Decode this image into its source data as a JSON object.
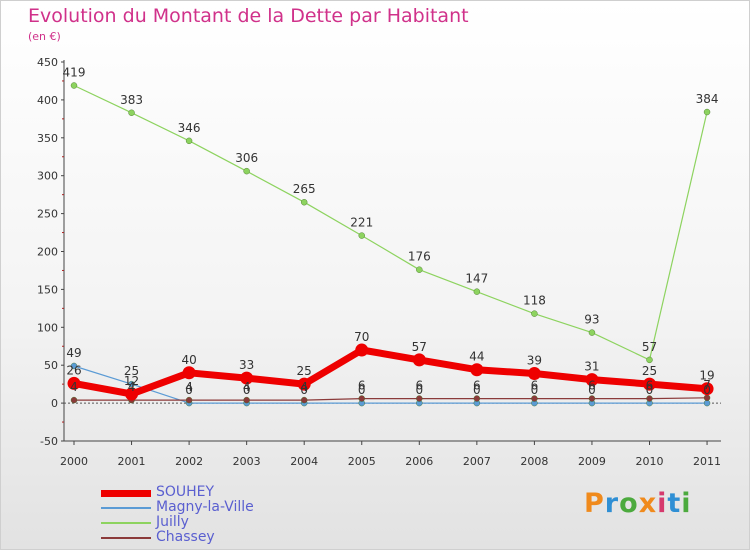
{
  "title": "Evolution du Montant de la Dette par Habitant",
  "unit": "(en €)",
  "brand": {
    "letters": [
      "P",
      "r",
      "o",
      "x",
      "i",
      "t",
      "i"
    ],
    "colors": [
      "#f08a1c",
      "#2f8fd4",
      "#4caa3e",
      "#f08a1c",
      "#d63a6e",
      "#2f8fd4",
      "#4caa3e"
    ]
  },
  "chart_data": {
    "type": "line",
    "title": "Evolution du Montant de la Dette par Habitant",
    "ylabel": "(en €)",
    "x": [
      "2000",
      "2001",
      "2002",
      "2003",
      "2004",
      "2005",
      "2006",
      "2007",
      "2008",
      "2009",
      "2010",
      "2011"
    ],
    "ylim": [
      -50,
      450
    ],
    "yticks": [
      -50,
      0,
      50,
      100,
      150,
      200,
      250,
      300,
      350,
      400,
      450
    ],
    "grid": false,
    "legend_position": "bottom-left",
    "series": [
      {
        "name": "SOUHEY",
        "color": "#ee0000",
        "values": [
          26,
          12,
          40,
          33,
          25,
          70,
          57,
          44,
          39,
          31,
          25,
          19
        ],
        "labels": [
          "26",
          "12",
          "40",
          "33",
          "25",
          "70",
          "57",
          "44",
          "39",
          "31",
          "25",
          "19"
        ]
      },
      {
        "name": "Magny-la-Ville",
        "color": "#5b9bd5",
        "values": [
          49,
          25,
          0,
          0,
          0,
          0,
          0,
          0,
          0,
          0,
          0,
          0
        ],
        "labels": [
          "49",
          "25",
          "0",
          "0",
          "0",
          "0",
          "0",
          "0",
          "0",
          "0",
          "0",
          "0"
        ]
      },
      {
        "name": "Juilly",
        "color": "#8dd35f",
        "values": [
          419,
          383,
          346,
          306,
          265,
          221,
          176,
          147,
          118,
          93,
          57,
          384
        ],
        "labels": [
          "419",
          "383",
          "346",
          "306",
          "265",
          "221",
          "176",
          "147",
          "118",
          "93",
          "57",
          "384"
        ]
      },
      {
        "name": "Chassey",
        "color": "#8b3a3a",
        "values": [
          4,
          4,
          4,
          4,
          4,
          6,
          6,
          6,
          6,
          6,
          6,
          7
        ],
        "labels": [
          "4",
          "4",
          "4",
          "4",
          "4",
          "6",
          "6",
          "6",
          "6",
          "6",
          "6",
          "7"
        ]
      }
    ]
  }
}
